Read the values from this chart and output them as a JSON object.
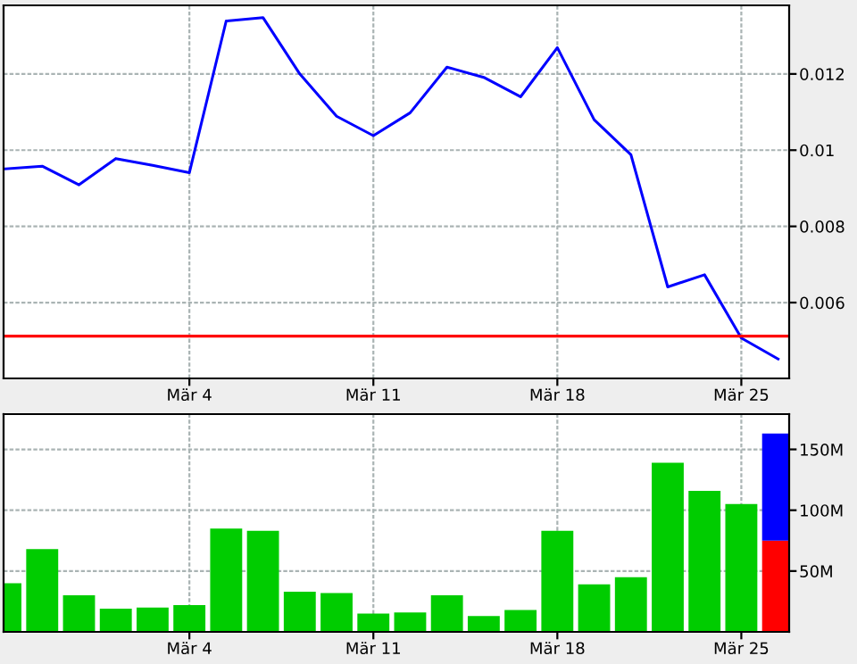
{
  "chart_data": [
    {
      "type": "line",
      "categories": [
        null,
        null,
        null,
        null,
        null,
        "Mär 4",
        null,
        null,
        null,
        null,
        "Mär 11",
        null,
        null,
        null,
        null,
        "Mär 18",
        null,
        null,
        null,
        null,
        "Mär 25",
        null
      ],
      "series": [
        {
          "color": "#0000ff",
          "values": [
            0.00951,
            0.00958,
            0.00909,
            0.00978,
            0.0096,
            0.00941,
            0.01339,
            0.01348,
            0.012,
            0.01089,
            0.01038,
            0.01098,
            0.01218,
            0.01191,
            0.0114,
            0.01269,
            0.0108,
            0.00988,
            0.00641,
            0.00673,
            0.00507,
            0.00452
          ]
        }
      ],
      "ylim": [
        0.00401,
        0.0138
      ],
      "yticks": [
        0.006,
        0.008,
        0.01,
        0.012
      ],
      "grid": true,
      "legend": false,
      "ref_lines": [
        {
          "axis": "y",
          "value": 0.00512,
          "color": "#ff0000"
        }
      ]
    },
    {
      "type": "bar",
      "stacked": true,
      "categories": [
        null,
        null,
        null,
        null,
        null,
        "Mär 4",
        null,
        null,
        null,
        null,
        "Mär 11",
        null,
        null,
        null,
        null,
        "Mär 18",
        null,
        null,
        null,
        null,
        "Mär 25",
        null
      ],
      "series": [
        {
          "color": "#00cc00",
          "values": [
            40,
            68,
            30,
            19,
            20,
            22,
            85,
            83,
            33,
            32,
            15,
            16,
            30,
            13,
            18,
            83,
            39,
            45,
            139,
            116,
            105,
            null
          ]
        },
        {
          "color": "#ff0000",
          "values": [
            null,
            null,
            null,
            null,
            null,
            null,
            null,
            null,
            null,
            null,
            null,
            null,
            null,
            null,
            null,
            null,
            null,
            null,
            null,
            null,
            null,
            75
          ]
        },
        {
          "color": "#0000ff",
          "values": [
            null,
            null,
            null,
            null,
            null,
            null,
            null,
            null,
            null,
            null,
            null,
            null,
            null,
            null,
            null,
            null,
            null,
            null,
            null,
            null,
            null,
            88
          ]
        }
      ],
      "ylim": [
        0,
        179
      ],
      "yticks": [
        {
          "value": 50,
          "label": "50M"
        },
        {
          "value": 100,
          "label": "100M"
        },
        {
          "value": 150,
          "label": "150M"
        }
      ],
      "grid": true,
      "legend": false
    }
  ]
}
